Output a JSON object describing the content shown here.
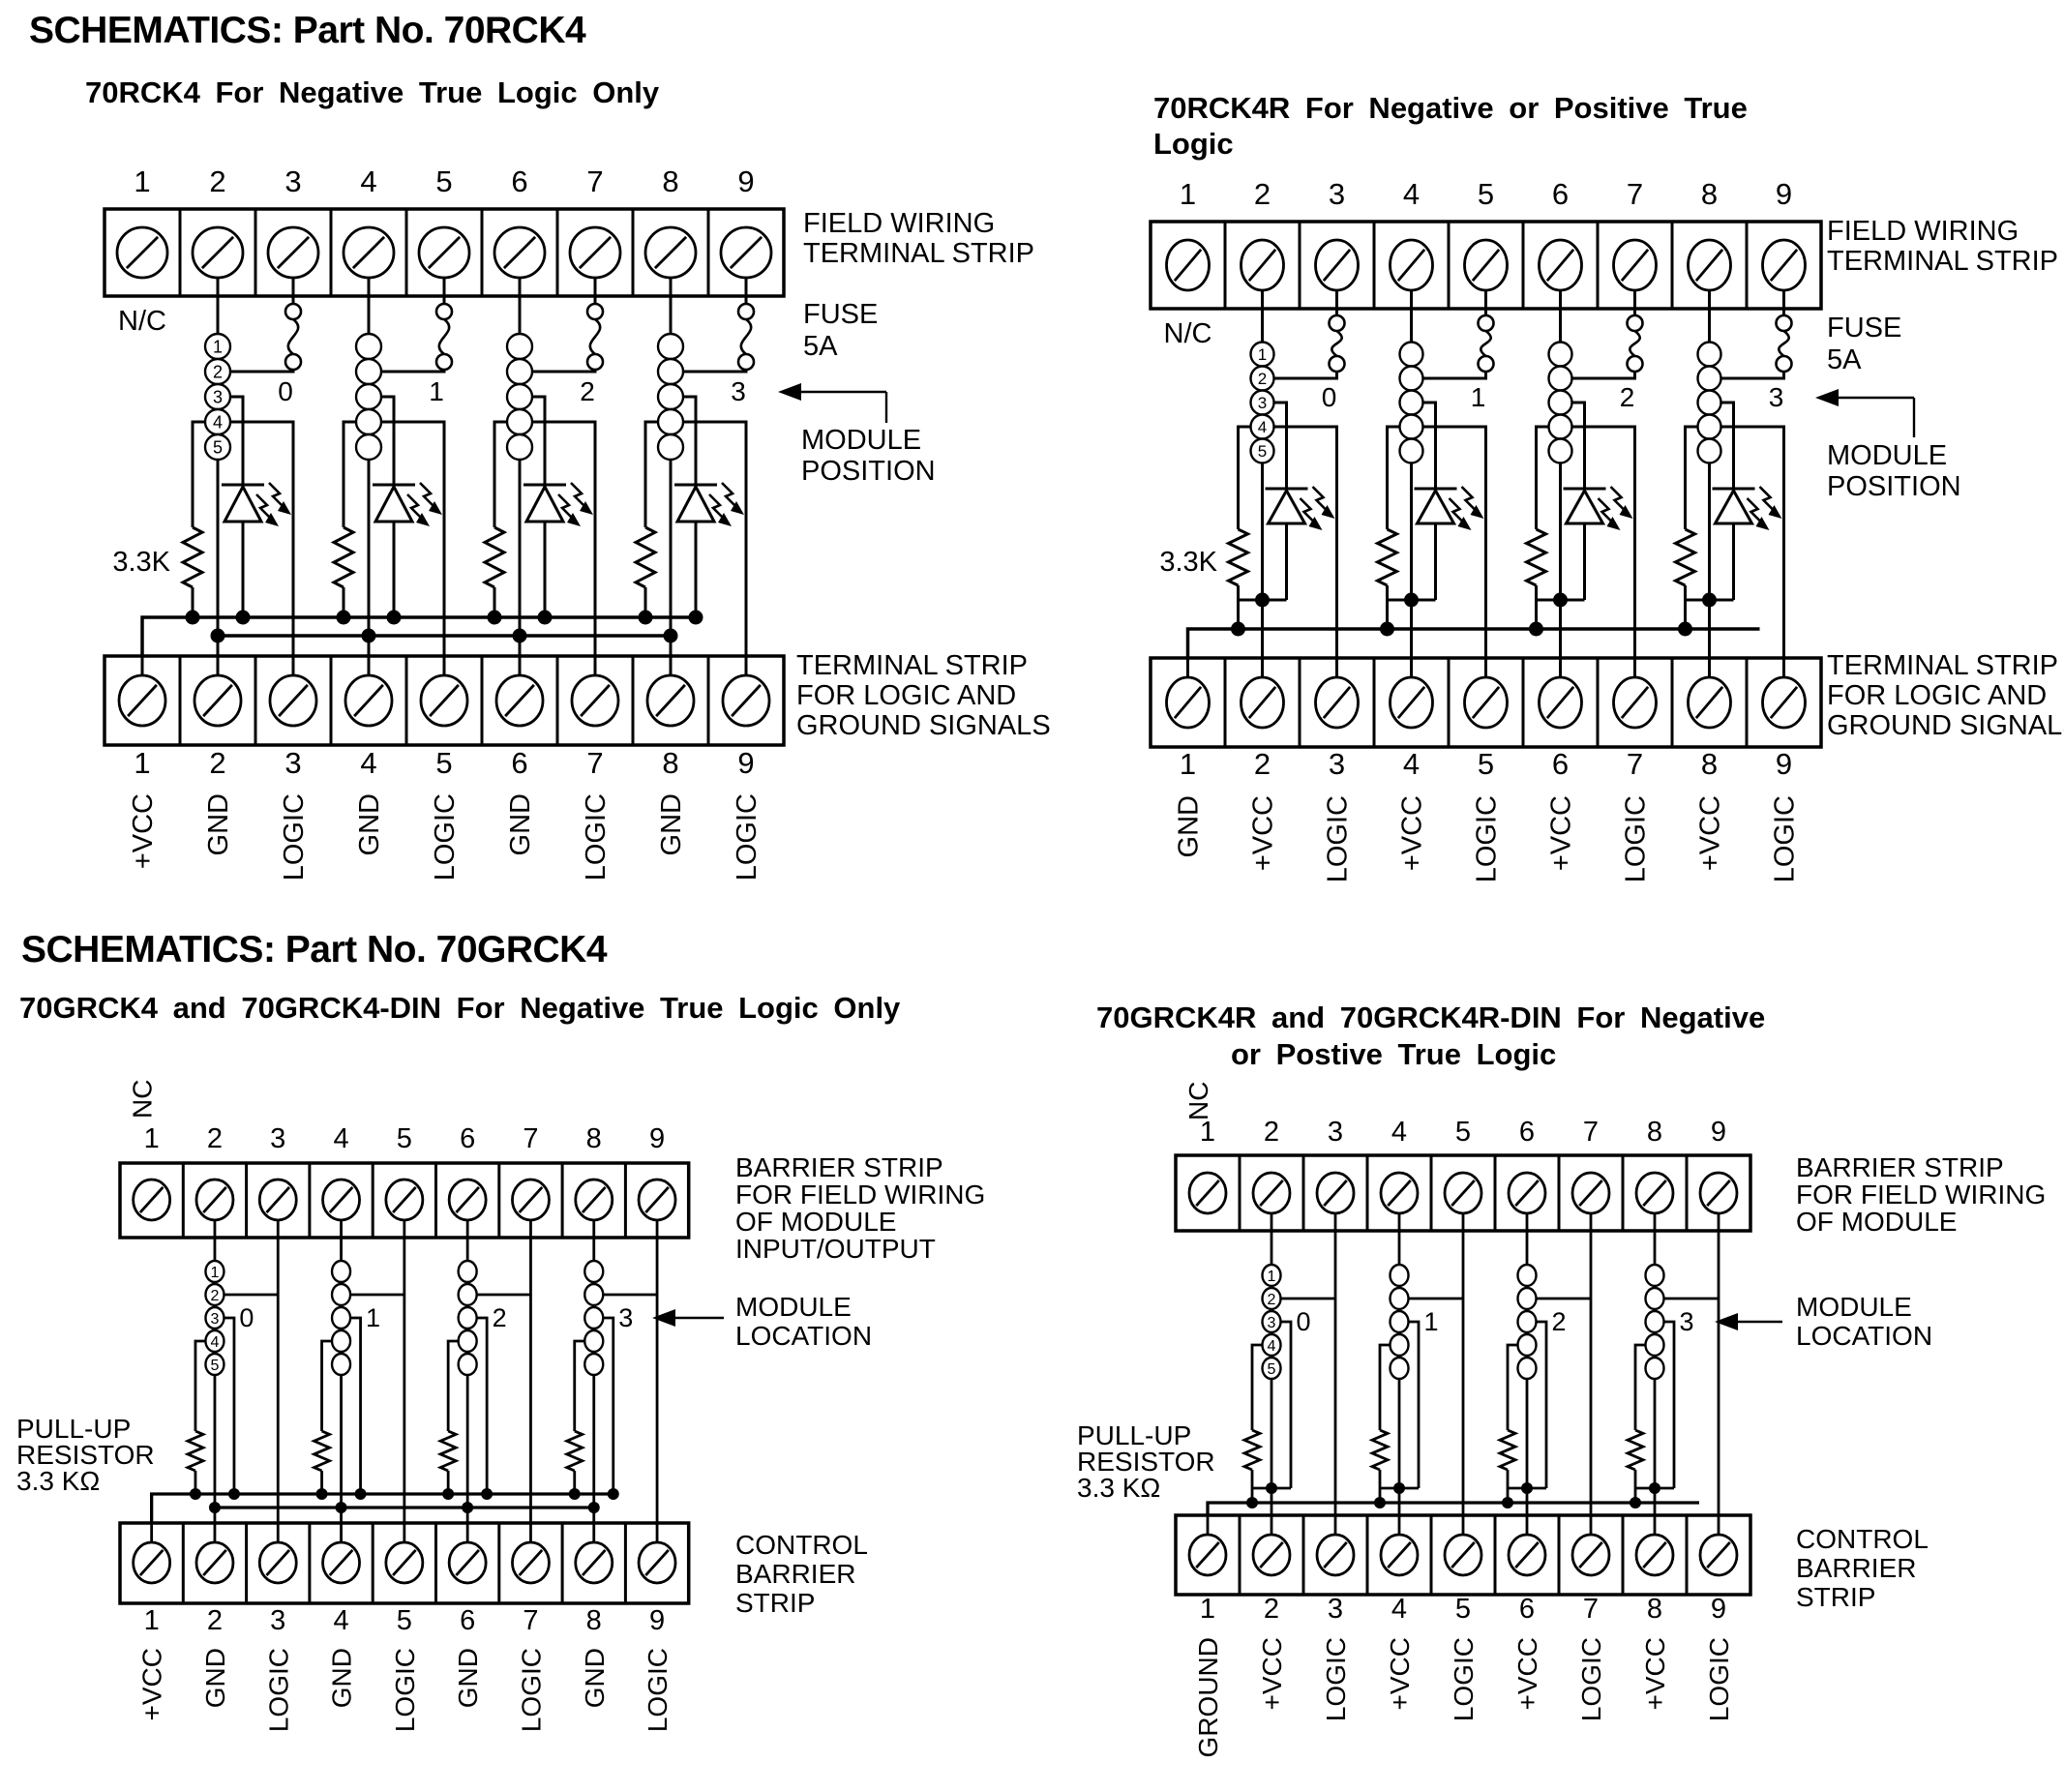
{
  "sections": [
    {
      "heading": "SCHEMATICS: Part No. 70RCK4"
    },
    {
      "heading": "SCHEMATICS: Part No. 70GRCK4"
    }
  ],
  "panels": {
    "rck4": {
      "title_lines": [
        "70RCK4 For Negative True Logic Only"
      ],
      "top_numbers": [
        "1",
        "2",
        "3",
        "4",
        "5",
        "6",
        "7",
        "8",
        "9"
      ],
      "bottom_numbers": [
        "1",
        "2",
        "3",
        "4",
        "5",
        "6",
        "7",
        "8",
        "9"
      ],
      "bottom_labels": [
        "+VCC",
        "GND",
        "LOGIC",
        "GND",
        "LOGIC",
        "GND",
        "LOGIC",
        "GND",
        "LOGIC"
      ],
      "nc_label": "N/C",
      "pin_numbers": [
        "1",
        "2",
        "3",
        "4",
        "5"
      ],
      "module_numbers": [
        "0",
        "1",
        "2",
        "3"
      ],
      "resistor_label": "3.3K",
      "labels": {
        "top_strip": [
          "FIELD WIRING",
          "TERMINAL STRIP"
        ],
        "fuse": [
          "FUSE",
          "5A"
        ],
        "module": [
          "MODULE",
          "POSITION"
        ],
        "bottom_strip": [
          "TERMINAL STRIP",
          "FOR LOGIC AND",
          "GROUND SIGNALS"
        ]
      }
    },
    "rck4r": {
      "title_lines": [
        "70RCK4R For Negative or Positive True",
        "Logic"
      ],
      "top_numbers": [
        "1",
        "2",
        "3",
        "4",
        "5",
        "6",
        "7",
        "8",
        "9"
      ],
      "bottom_numbers": [
        "1",
        "2",
        "3",
        "4",
        "5",
        "6",
        "7",
        "8",
        "9"
      ],
      "bottom_labels": [
        "GND",
        "+VCC",
        "LOGIC",
        "+VCC",
        "LOGIC",
        "+VCC",
        "LOGIC",
        "+VCC",
        "LOGIC"
      ],
      "nc_label": "N/C",
      "pin_numbers": [
        "1",
        "2",
        "3",
        "4",
        "5"
      ],
      "module_numbers": [
        "0",
        "1",
        "2",
        "3"
      ],
      "resistor_label": "3.3K",
      "labels": {
        "top_strip": [
          "FIELD WIRING",
          "TERMINAL STRIP"
        ],
        "fuse": [
          "FUSE",
          "5A"
        ],
        "module": [
          "MODULE",
          "POSITION"
        ],
        "bottom_strip": [
          "TERMINAL STRIP",
          "FOR LOGIC AND",
          "GROUND SIGNALS"
        ]
      }
    },
    "grck4": {
      "title_lines": [
        "70GRCK4 and 70GRCK4-DIN For Negative True Logic Only"
      ],
      "top_numbers": [
        "1",
        "2",
        "3",
        "4",
        "5",
        "6",
        "7",
        "8",
        "9"
      ],
      "bottom_numbers": [
        "1",
        "2",
        "3",
        "4",
        "5",
        "6",
        "7",
        "8",
        "9"
      ],
      "bottom_labels": [
        "+VCC",
        "GND",
        "LOGIC",
        "GND",
        "LOGIC",
        "GND",
        "LOGIC",
        "GND",
        "LOGIC"
      ],
      "nc_label": "NC",
      "pin_numbers": [
        "1",
        "2",
        "3",
        "4",
        "5"
      ],
      "module_numbers": [
        "0",
        "1",
        "2",
        "3"
      ],
      "resistor_label_lines": [
        "PULL-UP",
        "RESISTOR",
        "3.3 KΩ"
      ],
      "labels": {
        "top_strip": [
          "BARRIER STRIP",
          "FOR FIELD WIRING",
          "OF MODULE",
          "INPUT/OUTPUT"
        ],
        "module": [
          "MODULE",
          "LOCATION"
        ],
        "bottom_strip": [
          "CONTROL",
          "BARRIER",
          "STRIP"
        ]
      }
    },
    "grck4r": {
      "title_lines": [
        "70GRCK4R and 70GRCK4R-DIN For Negative",
        "or Postive True Logic"
      ],
      "top_numbers": [
        "1",
        "2",
        "3",
        "4",
        "5",
        "6",
        "7",
        "8",
        "9"
      ],
      "bottom_numbers": [
        "1",
        "2",
        "3",
        "4",
        "5",
        "6",
        "7",
        "8",
        "9"
      ],
      "bottom_labels": [
        "GROUND",
        "+VCC",
        "LOGIC",
        "+VCC",
        "LOGIC",
        "+VCC",
        "LOGIC",
        "+VCC",
        "LOGIC"
      ],
      "nc_label": "NC",
      "pin_numbers": [
        "1",
        "2",
        "3",
        "4",
        "5"
      ],
      "module_numbers": [
        "0",
        "1",
        "2",
        "3"
      ],
      "resistor_label_lines": [
        "PULL-UP",
        "RESISTOR",
        "3.3 KΩ"
      ],
      "labels": {
        "top_strip": [
          "BARRIER STRIP",
          "FOR FIELD WIRING",
          "OF MODULE"
        ],
        "module": [
          "MODULE",
          "LOCATION"
        ],
        "bottom_strip": [
          "CONTROL",
          "BARRIER",
          "STRIP"
        ]
      }
    }
  }
}
